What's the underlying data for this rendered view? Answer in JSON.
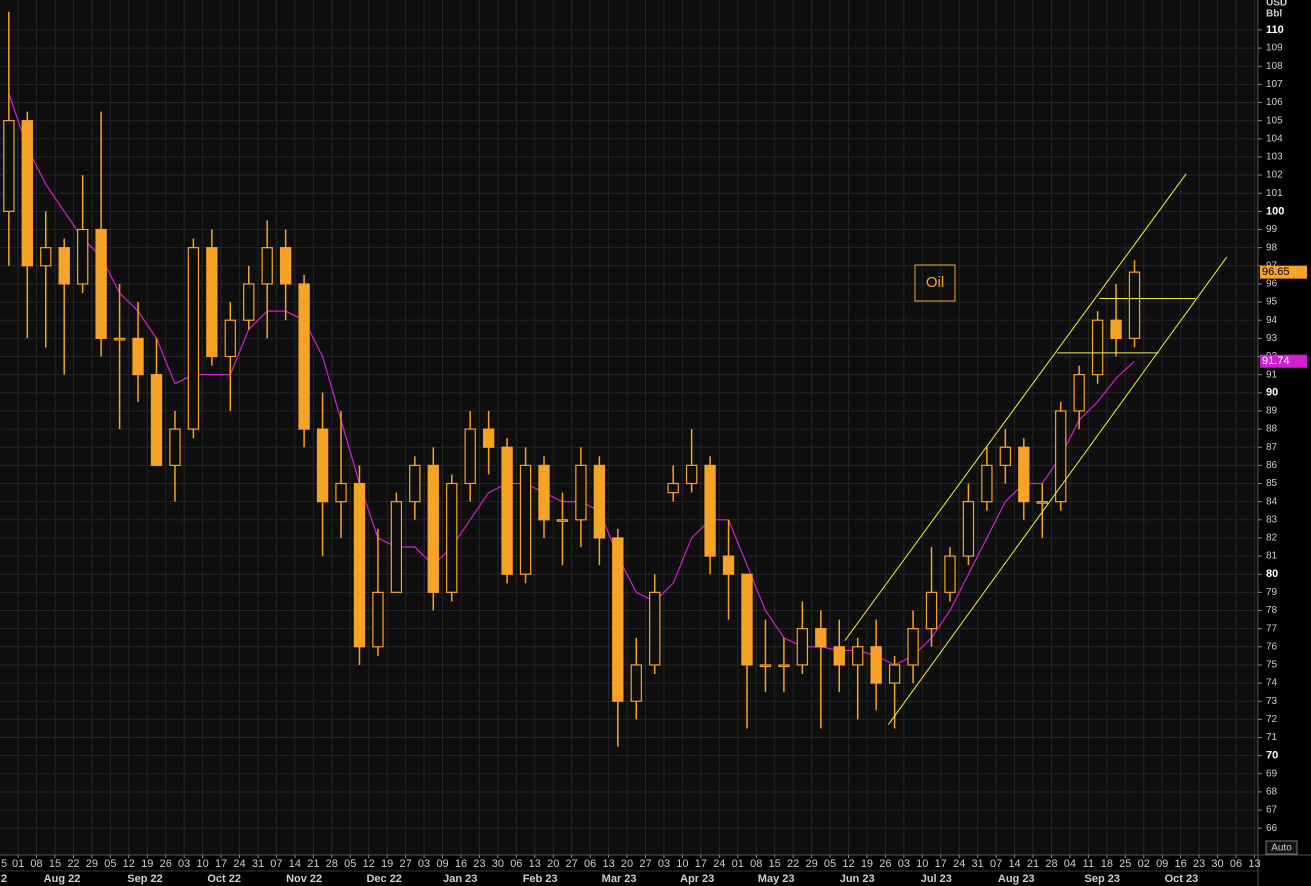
{
  "chart_data": {
    "type": "candlestick",
    "title": "Oil",
    "unit": [
      "USD",
      "Bbl"
    ],
    "autoscale": "Auto",
    "x": [
      -1,
      0,
      1,
      2,
      3,
      4,
      5,
      6,
      7,
      8,
      9,
      10,
      11,
      12,
      13,
      14,
      15,
      16,
      17,
      18,
      19,
      20,
      21,
      22,
      23,
      24,
      25,
      26,
      27,
      28,
      29,
      30,
      31,
      32,
      33,
      34,
      35,
      36,
      37,
      38,
      39,
      40,
      41,
      42,
      43,
      44,
      45,
      46,
      47,
      48,
      49,
      50,
      51,
      52,
      53,
      54,
      55,
      56,
      57,
      58,
      59,
      60
    ],
    "price": {
      "color": "#f7a325",
      "open": [
        100,
        105,
        97,
        98,
        96,
        99,
        93,
        93,
        91,
        86,
        88,
        98,
        92,
        94,
        96,
        98,
        96,
        88,
        84,
        85,
        76,
        79,
        84,
        86,
        79,
        85,
        88,
        87,
        80,
        86,
        83,
        83,
        86,
        82,
        73,
        75,
        84.5,
        85,
        86,
        81,
        80,
        75,
        75,
        75,
        77,
        76,
        75,
        76,
        74,
        75,
        77,
        79,
        81,
        84,
        86,
        87,
        84,
        84,
        89,
        91,
        94,
        93
      ],
      "high": [
        111,
        105.5,
        100,
        98.5,
        102,
        105.5,
        96,
        95,
        93,
        89,
        98.5,
        99,
        95,
        97,
        99.5,
        99,
        96.5,
        90,
        89,
        86,
        82.5,
        84.5,
        86.5,
        87,
        85.5,
        89,
        89,
        87.5,
        87,
        86.5,
        84.5,
        87,
        86.5,
        82.5,
        76.5,
        80,
        86,
        88,
        86.5,
        83,
        80,
        77.5,
        76.5,
        78.5,
        78,
        77.5,
        76.5,
        77.5,
        75.5,
        78,
        81.5,
        81.5,
        85,
        87,
        88,
        87.5,
        85,
        89.5,
        91.5,
        94.5,
        96,
        97.3
      ],
      "low": [
        97,
        93,
        92.5,
        91,
        95.5,
        92,
        88,
        89.5,
        86,
        84,
        87.5,
        91.5,
        89,
        93.5,
        93,
        94,
        87,
        81,
        82,
        75,
        75.5,
        79,
        83,
        78,
        78.5,
        84,
        85.5,
        79.5,
        79.5,
        82,
        80.5,
        81.5,
        80.5,
        70.5,
        72,
        74.5,
        84,
        84.5,
        80,
        77.5,
        71.5,
        73.5,
        73.5,
        74.5,
        71.5,
        73.5,
        72,
        72.5,
        71.5,
        74,
        76,
        78.5,
        80.5,
        83.5,
        85,
        83,
        82,
        83.5,
        88,
        90.5,
        92,
        92.5
      ],
      "close": [
        105,
        97,
        98,
        96,
        99,
        93,
        93,
        91,
        86,
        88,
        98,
        92,
        94,
        96,
        98,
        96,
        88,
        84,
        85,
        76,
        79,
        84,
        86,
        79,
        85,
        88,
        87,
        80,
        86,
        83,
        83,
        86,
        82,
        73,
        75,
        79,
        85,
        86,
        81,
        80,
        75,
        75,
        75,
        77,
        76,
        75,
        76,
        74,
        75,
        77,
        79,
        81,
        84,
        86,
        87,
        84,
        84,
        89,
        91,
        94,
        93,
        96.65
      ]
    },
    "moving_average": {
      "color": "#d21fd2",
      "values": [
        106.5,
        103.5,
        101.5,
        100,
        98.5,
        97.5,
        95.5,
        94.5,
        93,
        90.5,
        91,
        91,
        91,
        93.5,
        94.5,
        94.5,
        94,
        92,
        88.5,
        85,
        82,
        81.5,
        81.5,
        80.5,
        81.5,
        83,
        84.5,
        85,
        85,
        84.5,
        84,
        84,
        83.5,
        81,
        79,
        78.5,
        79.5,
        82,
        83,
        83,
        80.5,
        78,
        76.5,
        76,
        76,
        75.8,
        75.8,
        75.5,
        75,
        75.5,
        76.5,
        78,
        80,
        82,
        84,
        85,
        85,
        86.5,
        88.5,
        89.5,
        90.8,
        91.74
      ]
    },
    "trend_lines": [
      {
        "x": [
          44.8,
          63.3
        ],
        "y": [
          76.34,
          102.07
        ]
      },
      {
        "x": [
          47.16,
          65.5
        ],
        "y": [
          71.71,
          97.49
        ]
      },
      {
        "x": [
          58.6,
          63.8
        ],
        "y": [
          95.2,
          95.2
        ]
      },
      {
        "x": [
          56.3,
          61.8
        ],
        "y": [
          92.2,
          92.2
        ]
      }
    ],
    "trend_color": "#f2f23a",
    "xlim": [
      -0.98,
      67.3
    ],
    "ylim": [
      64.8,
      111.65
    ],
    "grid": true,
    "yticks": [
      66,
      67,
      68,
      69,
      70,
      71,
      72,
      73,
      74,
      75,
      76,
      77,
      78,
      79,
      80,
      81,
      82,
      83,
      84,
      85,
      86,
      87,
      88,
      89,
      90,
      91,
      92,
      93,
      94,
      95,
      96,
      97,
      98,
      99,
      100,
      101,
      102,
      103,
      104,
      105,
      106,
      107,
      108,
      109,
      110
    ],
    "xticks": [
      {
        "value": -1,
        "label": "5"
      },
      {
        "value": 0,
        "label": "01"
      },
      {
        "value": 1,
        "label": "08"
      },
      {
        "value": 2,
        "label": "15"
      },
      {
        "value": 3,
        "label": "22"
      },
      {
        "value": 4,
        "label": "29"
      },
      {
        "value": 5,
        "label": "05"
      },
      {
        "value": 6,
        "label": "12"
      },
      {
        "value": 7,
        "label": "19"
      },
      {
        "value": 8,
        "label": "26"
      },
      {
        "value": 9,
        "label": "03"
      },
      {
        "value": 10,
        "label": "10"
      },
      {
        "value": 11,
        "label": "17"
      },
      {
        "value": 12,
        "label": "24"
      },
      {
        "value": 13,
        "label": "31"
      },
      {
        "value": 14,
        "label": "07"
      },
      {
        "value": 15,
        "label": "14"
      },
      {
        "value": 16,
        "label": "21"
      },
      {
        "value": 17,
        "label": "28"
      },
      {
        "value": 18,
        "label": "05"
      },
      {
        "value": 19,
        "label": "12"
      },
      {
        "value": 20,
        "label": "19"
      },
      {
        "value": 21,
        "label": "27"
      },
      {
        "value": 22,
        "label": "03"
      },
      {
        "value": 23,
        "label": "09"
      },
      {
        "value": 24,
        "label": "16"
      },
      {
        "value": 25,
        "label": "23"
      },
      {
        "value": 26,
        "label": "30"
      },
      {
        "value": 27,
        "label": "06"
      },
      {
        "value": 28,
        "label": "13"
      },
      {
        "value": 29,
        "label": "20"
      },
      {
        "value": 30,
        "label": "27"
      },
      {
        "value": 31,
        "label": "06"
      },
      {
        "value": 32,
        "label": "13"
      },
      {
        "value": 33,
        "label": "20"
      },
      {
        "value": 34,
        "label": "27"
      },
      {
        "value": 35,
        "label": "03"
      },
      {
        "value": 36,
        "label": "10"
      },
      {
        "value": 37,
        "label": "17"
      },
      {
        "value": 38,
        "label": "24"
      },
      {
        "value": 39,
        "label": "01"
      },
      {
        "value": 40,
        "label": "08"
      },
      {
        "value": 41,
        "label": "15"
      },
      {
        "value": 42,
        "label": "22"
      },
      {
        "value": 43,
        "label": "29"
      },
      {
        "value": 44,
        "label": "05"
      },
      {
        "value": 45,
        "label": "12"
      },
      {
        "value": 46,
        "label": "19"
      },
      {
        "value": 47,
        "label": "26"
      },
      {
        "value": 48,
        "label": "03"
      },
      {
        "value": 49,
        "label": "10"
      },
      {
        "value": 50,
        "label": "17"
      },
      {
        "value": 51,
        "label": "24"
      },
      {
        "value": 52,
        "label": "31"
      },
      {
        "value": 53,
        "label": "07"
      },
      {
        "value": 54,
        "label": "14"
      },
      {
        "value": 55,
        "label": "21"
      },
      {
        "value": 56,
        "label": "28"
      },
      {
        "value": 57,
        "label": "04"
      },
      {
        "value": 58,
        "label": "11"
      },
      {
        "value": 59,
        "label": "18"
      },
      {
        "value": 60,
        "label": "25"
      },
      {
        "value": 61,
        "label": "02"
      },
      {
        "value": 62,
        "label": "09"
      },
      {
        "value": 63,
        "label": "16"
      },
      {
        "value": 64,
        "label": "23"
      },
      {
        "value": 65,
        "label": "30"
      },
      {
        "value": 66,
        "label": "06"
      },
      {
        "value": 67,
        "label": "13"
      }
    ],
    "month_ticks": [
      {
        "value": -0.81,
        "label": "2"
      },
      {
        "value": 2.38,
        "label": "Aug 22"
      },
      {
        "value": 6.88,
        "label": "Sep 22"
      },
      {
        "value": 11.17,
        "label": "Oct 22"
      },
      {
        "value": 15.5,
        "label": "Nov 22"
      },
      {
        "value": 19.84,
        "label": "Dec 22"
      },
      {
        "value": 23.96,
        "label": "Jan 23"
      },
      {
        "value": 28.29,
        "label": "Feb 23"
      },
      {
        "value": 32.57,
        "label": "Mar 23"
      },
      {
        "value": 36.8,
        "label": "Apr 23"
      },
      {
        "value": 41.08,
        "label": "May 23"
      },
      {
        "value": 45.47,
        "label": "Jun 23"
      },
      {
        "value": 49.76,
        "label": "Jul 23"
      },
      {
        "value": 54.09,
        "label": "Aug 23"
      },
      {
        "value": 58.75,
        "label": "Sep 23"
      },
      {
        "value": 63.04,
        "label": "Oct 23"
      }
    ]
  }
}
